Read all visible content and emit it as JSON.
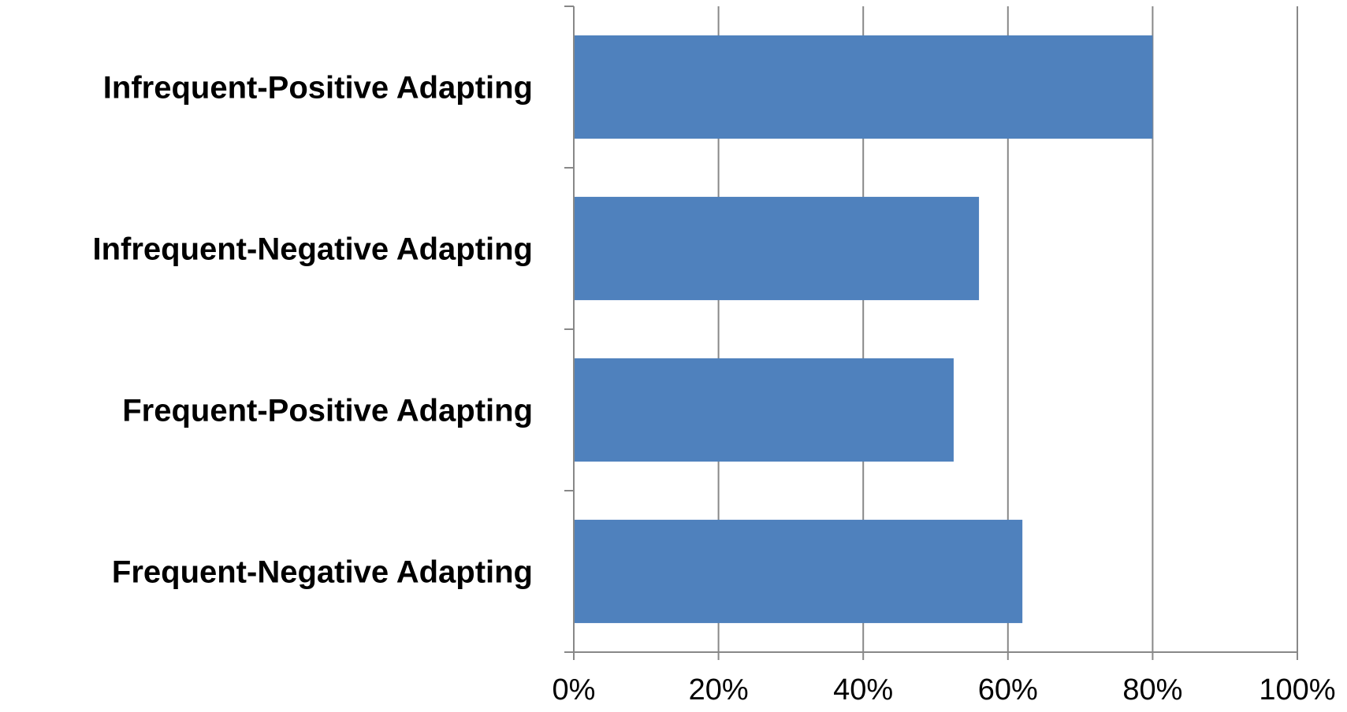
{
  "chart_data": {
    "type": "bar",
    "orientation": "horizontal",
    "categories": [
      "Infrequent-Positive Adapting",
      "Infrequent-Negative Adapting",
      "Frequent-Positive Adapting",
      "Frequent-Negative Adapting"
    ],
    "values": [
      80,
      56,
      52.5,
      62
    ],
    "value_unit": "%",
    "xlim": [
      0,
      100
    ],
    "x_ticks": [
      "0%",
      "20%",
      "40%",
      "60%",
      "80%",
      "100%"
    ],
    "title": "",
    "xlabel": "",
    "ylabel": "",
    "grid": "vertical",
    "legend": "none",
    "colors": {
      "bar": "#4F81BD",
      "grid": "#888888",
      "axis": "#888888"
    }
  }
}
